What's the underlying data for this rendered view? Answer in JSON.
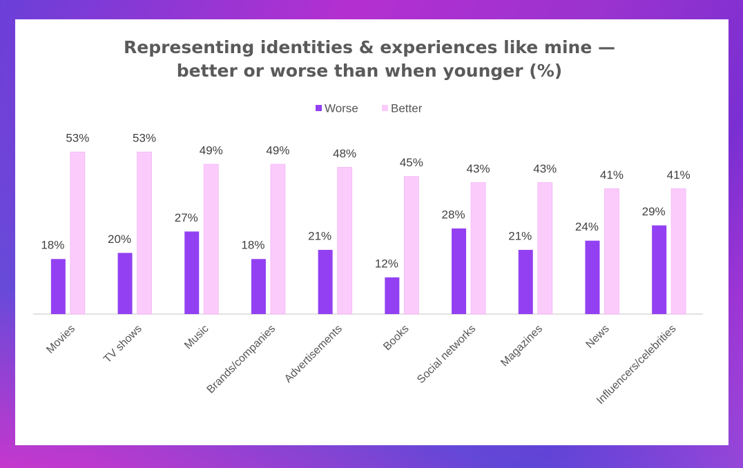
{
  "chart_data": {
    "type": "bar",
    "title": [
      "Representing identities & experiences like mine —",
      "better or worse than when younger (%)"
    ],
    "categories": [
      "Movies",
      "TV shows",
      "Music",
      "Brands/companies",
      "Advertisements",
      "Books",
      "Social networks",
      "Magazines",
      "News",
      "Influencers/celebrities"
    ],
    "series": [
      {
        "name": "Worse",
        "color": "#9340f2",
        "values": [
          18,
          20,
          27,
          18,
          21,
          12,
          28,
          21,
          24,
          29
        ],
        "value_labels": [
          "18%",
          "20%",
          "27%",
          "18%",
          "21%",
          "12%",
          "28%",
          "21%",
          "24%",
          "29%"
        ]
      },
      {
        "name": "Better",
        "color": "#fbcbfc",
        "values": [
          53,
          53,
          49,
          49,
          48,
          45,
          43,
          43,
          41,
          41
        ],
        "value_labels": [
          "53%",
          "53%",
          "49%",
          "49%",
          "48%",
          "45%",
          "43%",
          "43%",
          "41%",
          "41%"
        ]
      }
    ],
    "legend": "top"
  }
}
